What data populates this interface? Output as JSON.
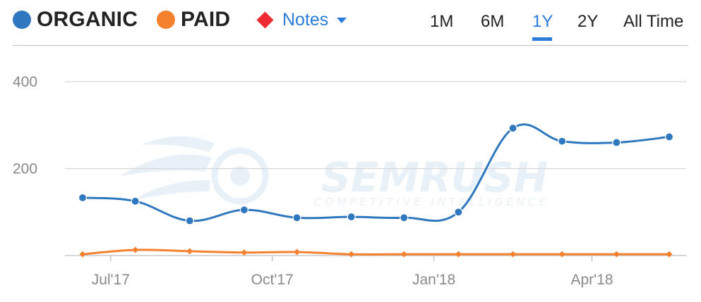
{
  "toolbar": {
    "legend": [
      {
        "label": "ORGANIC",
        "color": "#2f78c0"
      },
      {
        "label": "PAID",
        "color": "#f5812e"
      }
    ],
    "notes": {
      "label": "Notes",
      "color": "#ee2a33",
      "icon": "red-diamond-icon"
    },
    "ranges": [
      "1M",
      "6M",
      "1Y",
      "2Y",
      "All Time"
    ],
    "active_range": "1Y"
  },
  "watermark": {
    "brand": "SEMRUSH",
    "tagline": "COMPETITIVE INTELLIGENCE"
  },
  "chart_data": {
    "type": "line",
    "ylim": [
      0,
      400
    ],
    "yticks": [
      0,
      200,
      400
    ],
    "ytick_labels": [
      "",
      "200",
      "400"
    ],
    "x_points": [
      "2017-06-15",
      "2017-07-15",
      "2017-08-15",
      "2017-09-15",
      "2017-10-15",
      "2017-11-15",
      "2017-12-15",
      "2018-01-15",
      "2018-02-15",
      "2018-03-15",
      "2018-04-15",
      "2018-05-15"
    ],
    "x_tick_labels": [
      "Jul'17",
      "Oct'17",
      "Jan'18",
      "Apr'18"
    ],
    "series": [
      {
        "name": "ORGANIC",
        "color": "#2f78c0",
        "marker": "circle",
        "values": [
          133,
          125,
          80,
          105,
          87,
          89,
          87,
          100,
          293,
          263,
          260,
          273
        ]
      },
      {
        "name": "PAID",
        "color": "#f5812e",
        "marker": "diamond",
        "values": [
          3,
          13,
          10,
          7,
          8,
          3,
          3,
          3,
          3,
          3,
          3,
          3
        ]
      }
    ],
    "grid": true,
    "legend": "top-left"
  }
}
